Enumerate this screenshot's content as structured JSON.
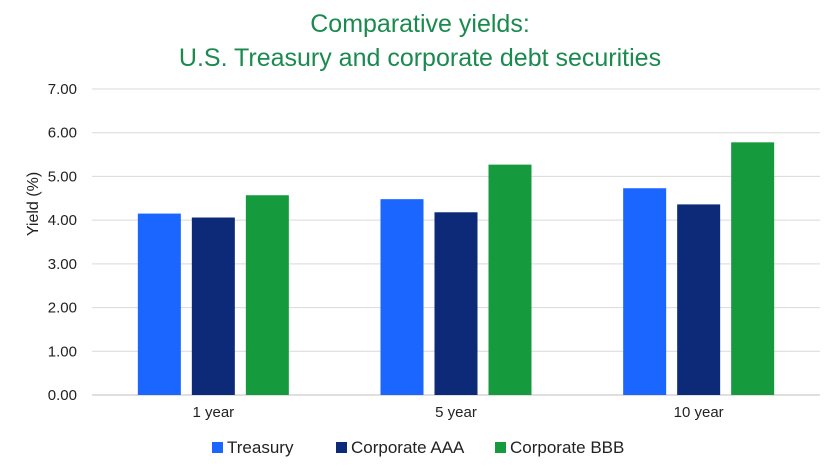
{
  "chart_data": {
    "type": "bar",
    "title": "Comparative yields:",
    "subtitle": "U.S. Treasury and corporate debt securities",
    "xlabel": "",
    "ylabel": "Yield (%)",
    "ylim": [
      0,
      7
    ],
    "yticks": [
      "0.00",
      "1.00",
      "2.00",
      "3.00",
      "4.00",
      "5.00",
      "6.00",
      "7.00"
    ],
    "categories": [
      "1 year",
      "5 year",
      "10 year"
    ],
    "series": [
      {
        "name": "Treasury",
        "color": "#1a66ff",
        "values": [
          4.15,
          4.48,
          4.73
        ]
      },
      {
        "name": "Corporate AAA",
        "color": "#0c2a78",
        "values": [
          4.06,
          4.18,
          4.36
        ]
      },
      {
        "name": "Corporate BBB",
        "color": "#169a3e",
        "values": [
          4.57,
          5.27,
          5.78
        ]
      }
    ],
    "grid": true,
    "legend_position": "bottom"
  }
}
